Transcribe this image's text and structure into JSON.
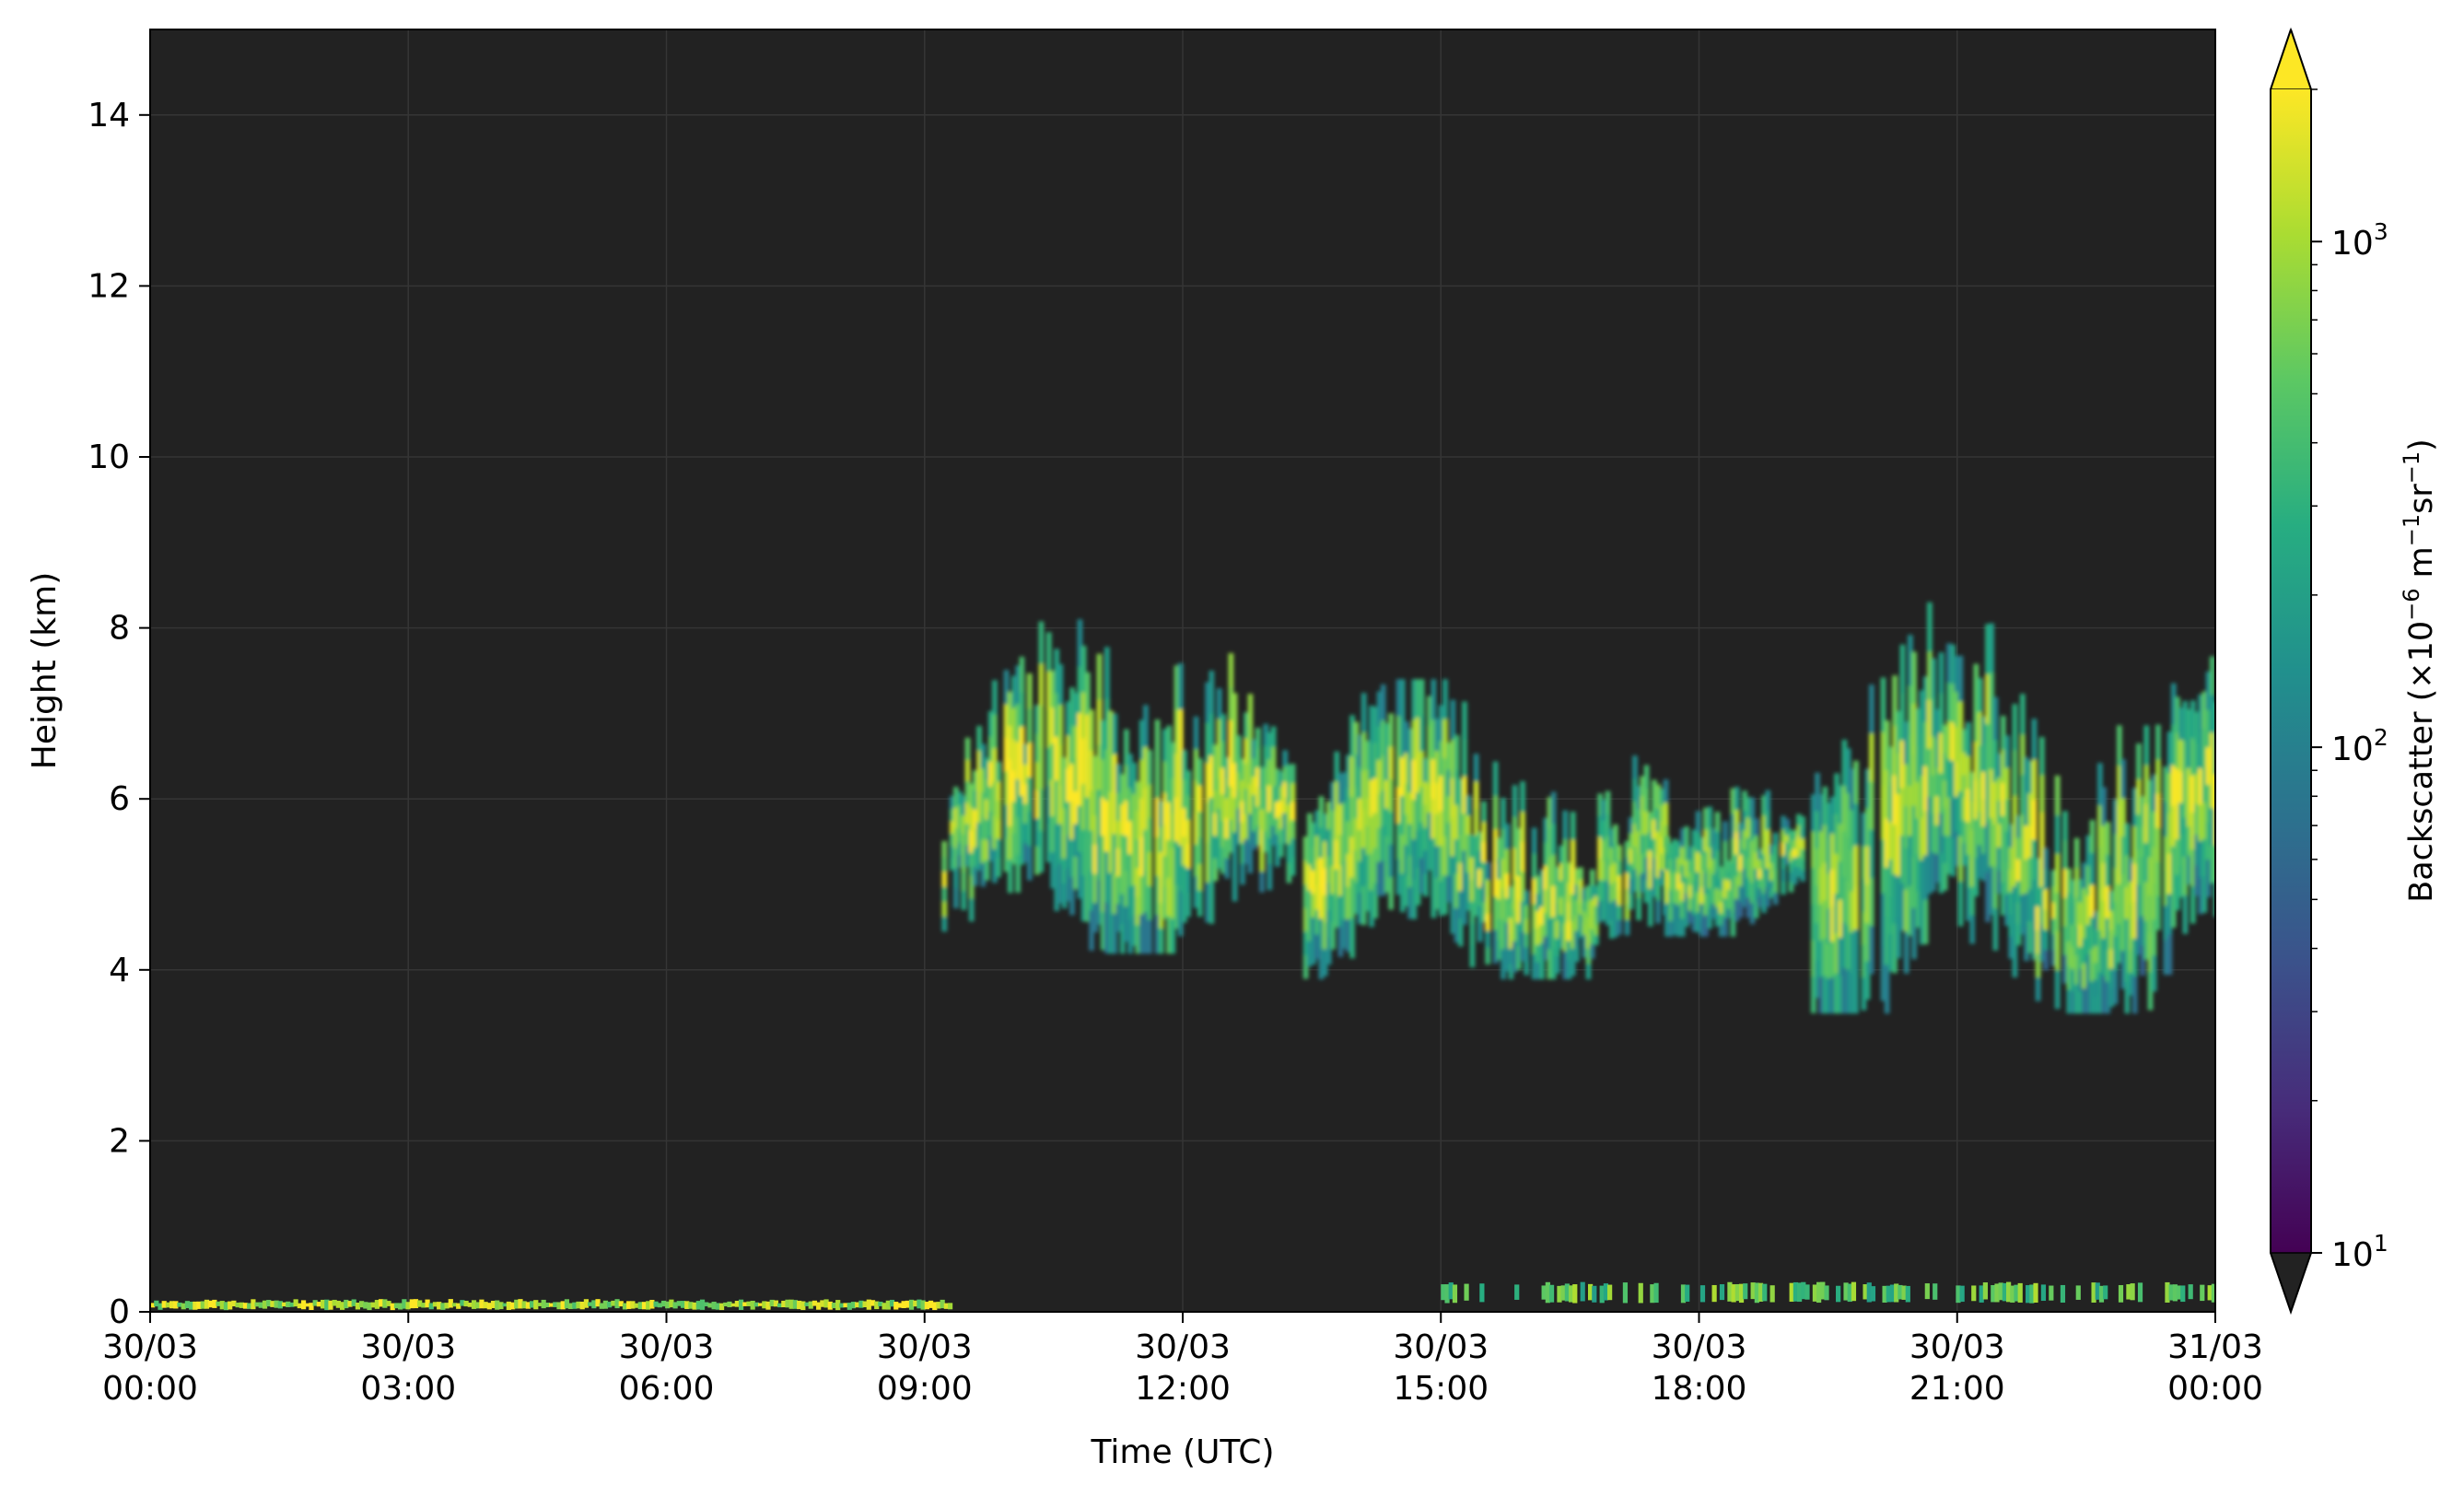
{
  "chart_data": {
    "type": "heatmap",
    "title": "",
    "xlabel": "Time (UTC)",
    "ylabel": "Height (km)",
    "x_axis": {
      "unit": "hours since 30/03 00:00 UTC",
      "range": [
        0,
        24
      ],
      "ticks": [
        {
          "value": 0,
          "date": "30/03",
          "time": "00:00"
        },
        {
          "value": 3,
          "date": "30/03",
          "time": "03:00"
        },
        {
          "value": 6,
          "date": "30/03",
          "time": "06:00"
        },
        {
          "value": 9,
          "date": "30/03",
          "time": "09:00"
        },
        {
          "value": 12,
          "date": "30/03",
          "time": "12:00"
        },
        {
          "value": 15,
          "date": "30/03",
          "time": "15:00"
        },
        {
          "value": 18,
          "date": "30/03",
          "time": "18:00"
        },
        {
          "value": 21,
          "date": "30/03",
          "time": "21:00"
        },
        {
          "value": 24,
          "date": "31/03",
          "time": "00:00"
        }
      ]
    },
    "y_axis": {
      "unit": "km",
      "range": [
        0,
        15
      ],
      "ticks": [
        0,
        2,
        4,
        6,
        8,
        10,
        12,
        14
      ]
    },
    "grid": true,
    "background_color": "#222222",
    "colorbar": {
      "label_prefix": "Backscatter (×10",
      "label_exp1": "−6",
      "label_mid1": " m",
      "label_exp2": "−1",
      "label_mid2": "sr",
      "label_exp3": "−1",
      "label_suffix": ")",
      "scale": "log",
      "range": [
        10,
        2000
      ],
      "extend": "both",
      "colormap": "viridis",
      "colors": [
        "#440154",
        "#472c7a",
        "#3b528b",
        "#2c728e",
        "#21908d",
        "#27ad81",
        "#5cc863",
        "#aadc32",
        "#fde725"
      ],
      "ticks": [
        {
          "value": 10,
          "base": "10",
          "exp": "1"
        },
        {
          "value": 100,
          "base": "10",
          "exp": "2"
        },
        {
          "value": 1000,
          "base": "10",
          "exp": "3"
        }
      ]
    },
    "features": [
      {
        "name": "surface layer",
        "t_start": 0.0,
        "t_end": 9.3,
        "h_bottom": 0.02,
        "h_top": 0.15,
        "intensity": 700
      },
      {
        "name": "cloud layer A",
        "t_start": 9.2,
        "t_end": 13.3,
        "h_bottom": 4.2,
        "h_top": 8.1,
        "intensity": 300
      },
      {
        "name": "cloud layer B",
        "t_start": 13.4,
        "t_end": 17.6,
        "h_bottom": 3.9,
        "h_top": 7.4,
        "intensity": 250
      },
      {
        "name": "cloud layer C",
        "t_start": 17.6,
        "t_end": 19.2,
        "h_bottom": 4.4,
        "h_top": 6.7,
        "intensity": 200
      },
      {
        "name": "cloud layer D",
        "t_start": 19.3,
        "t_end": 24.0,
        "h_bottom": 3.5,
        "h_top": 8.3,
        "intensity": 220
      },
      {
        "name": "low returns",
        "t_start": 15.0,
        "t_end": 24.0,
        "h_bottom": 0.1,
        "h_top": 0.35,
        "intensity": 300
      }
    ]
  }
}
